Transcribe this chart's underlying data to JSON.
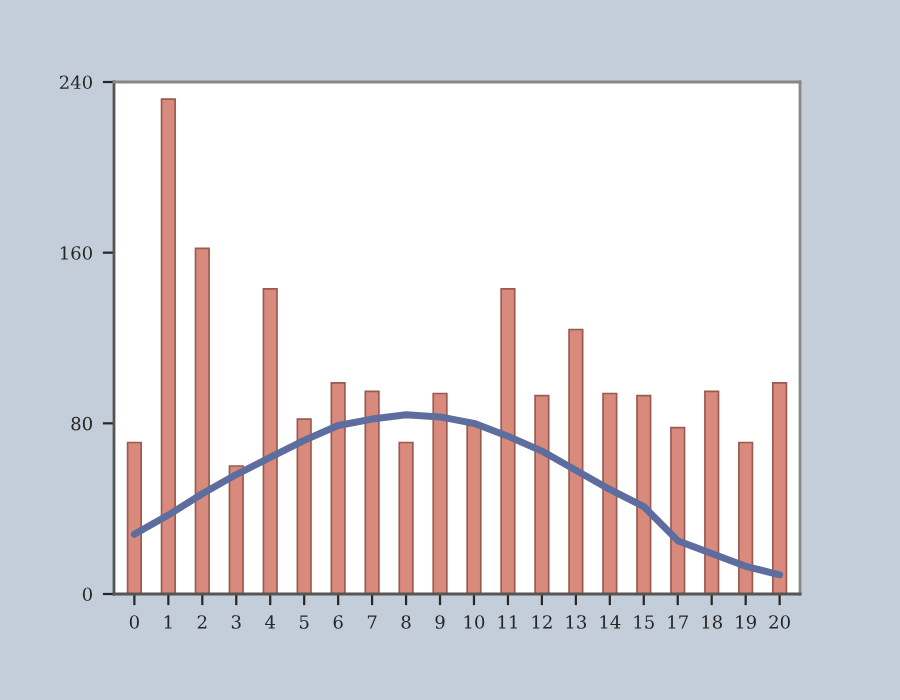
{
  "chart_data": {
    "type": "bar",
    "categories": [
      "0",
      "1",
      "2",
      "3",
      "4",
      "5",
      "6",
      "7",
      "8",
      "9",
      "10",
      "11",
      "12",
      "13",
      "14",
      "15",
      "17",
      "18",
      "19",
      "20"
    ],
    "series": [
      {
        "color": "#d88a7c",
        "values": [
          71,
          232,
          162,
          60,
          143,
          82,
          99,
          95,
          71,
          94,
          79,
          143,
          93,
          124,
          94,
          93,
          78,
          95,
          71,
          99
        ]
      },
      {
        "type": "line",
        "color": "#5d6d9e",
        "values": [
          28,
          37,
          47,
          56,
          64,
          72,
          79,
          82,
          84,
          83,
          80,
          74,
          67,
          58,
          49,
          41,
          25,
          19,
          13,
          9
        ]
      }
    ],
    "ylim": [
      0,
      240
    ],
    "yticks": [
      0,
      80,
      160,
      240
    ],
    "grid": false
  }
}
